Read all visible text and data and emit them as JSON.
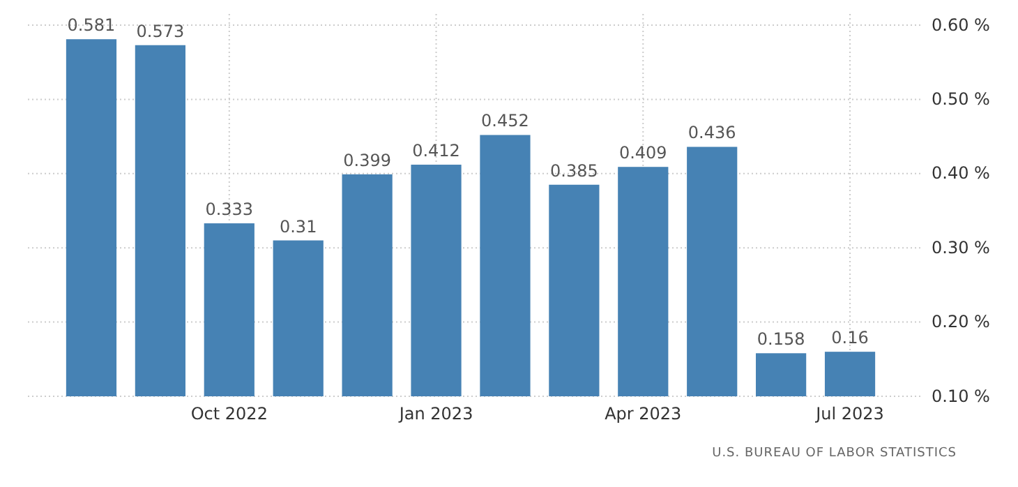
{
  "chart_data": {
    "type": "bar",
    "categories": [
      null,
      null,
      "Oct 2022",
      null,
      null,
      "Jan 2023",
      null,
      null,
      "Apr 2023",
      null,
      null,
      "Jul 2023"
    ],
    "values": [
      0.581,
      0.573,
      0.333,
      0.31,
      0.399,
      0.412,
      0.452,
      0.385,
      0.409,
      0.436,
      0.158,
      0.16
    ],
    "color": "#4682b4",
    "ylim": [
      0.1,
      0.6
    ],
    "yticks": [
      {
        "value": 0.1,
        "label": "0.10 %"
      },
      {
        "value": 0.2,
        "label": "0.20 %"
      },
      {
        "value": 0.3,
        "label": "0.30 %"
      },
      {
        "value": 0.4,
        "label": "0.40 %"
      },
      {
        "value": 0.5,
        "label": "0.50 %"
      },
      {
        "value": 0.6,
        "label": "0.60 %"
      }
    ],
    "grid": true,
    "data_labels": true,
    "annotations": [
      "U.S. BUREAU OF LABOR STATISTICS"
    ]
  }
}
